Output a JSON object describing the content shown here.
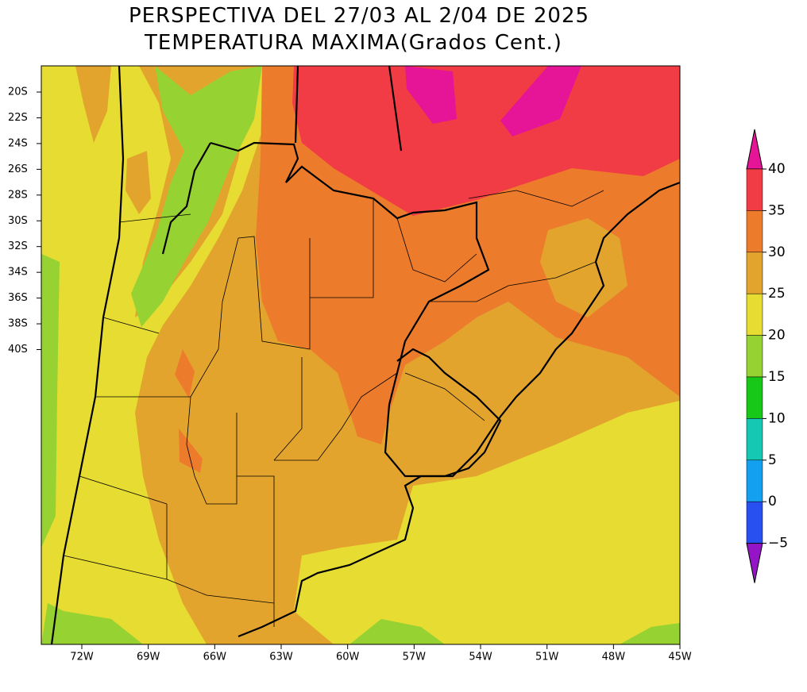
{
  "title": [
    "PERSPECTIVA DEL 27/03 AL 2/04 DE 2025",
    "TEMPERATURA MAXIMA(Grados Cent.)"
  ],
  "lat_labels": [
    "20S",
    "22S",
    "24S",
    "26S",
    "28S",
    "30S",
    "32S",
    "34S",
    "36S",
    "38S",
    "40S"
  ],
  "lon_labels": [
    "72W",
    "69W",
    "66W",
    "63W",
    "60W",
    "57W",
    "54W",
    "51W",
    "48W",
    "45W"
  ],
  "colorbar": {
    "ticks": [
      40,
      35,
      30,
      25,
      20,
      15,
      10,
      5,
      0,
      {
        "value": -5,
        "label": "−5"
      }
    ],
    "colors": [
      "#f23c45",
      "#ec7c2c",
      "#e3a42e",
      "#e6dc32",
      "#96d232",
      "#18c818",
      "#14c8b4",
      "#14a0f0",
      "#2850f0"
    ],
    "above_color": "#e61496",
    "below_color": "#9614c8"
  }
}
